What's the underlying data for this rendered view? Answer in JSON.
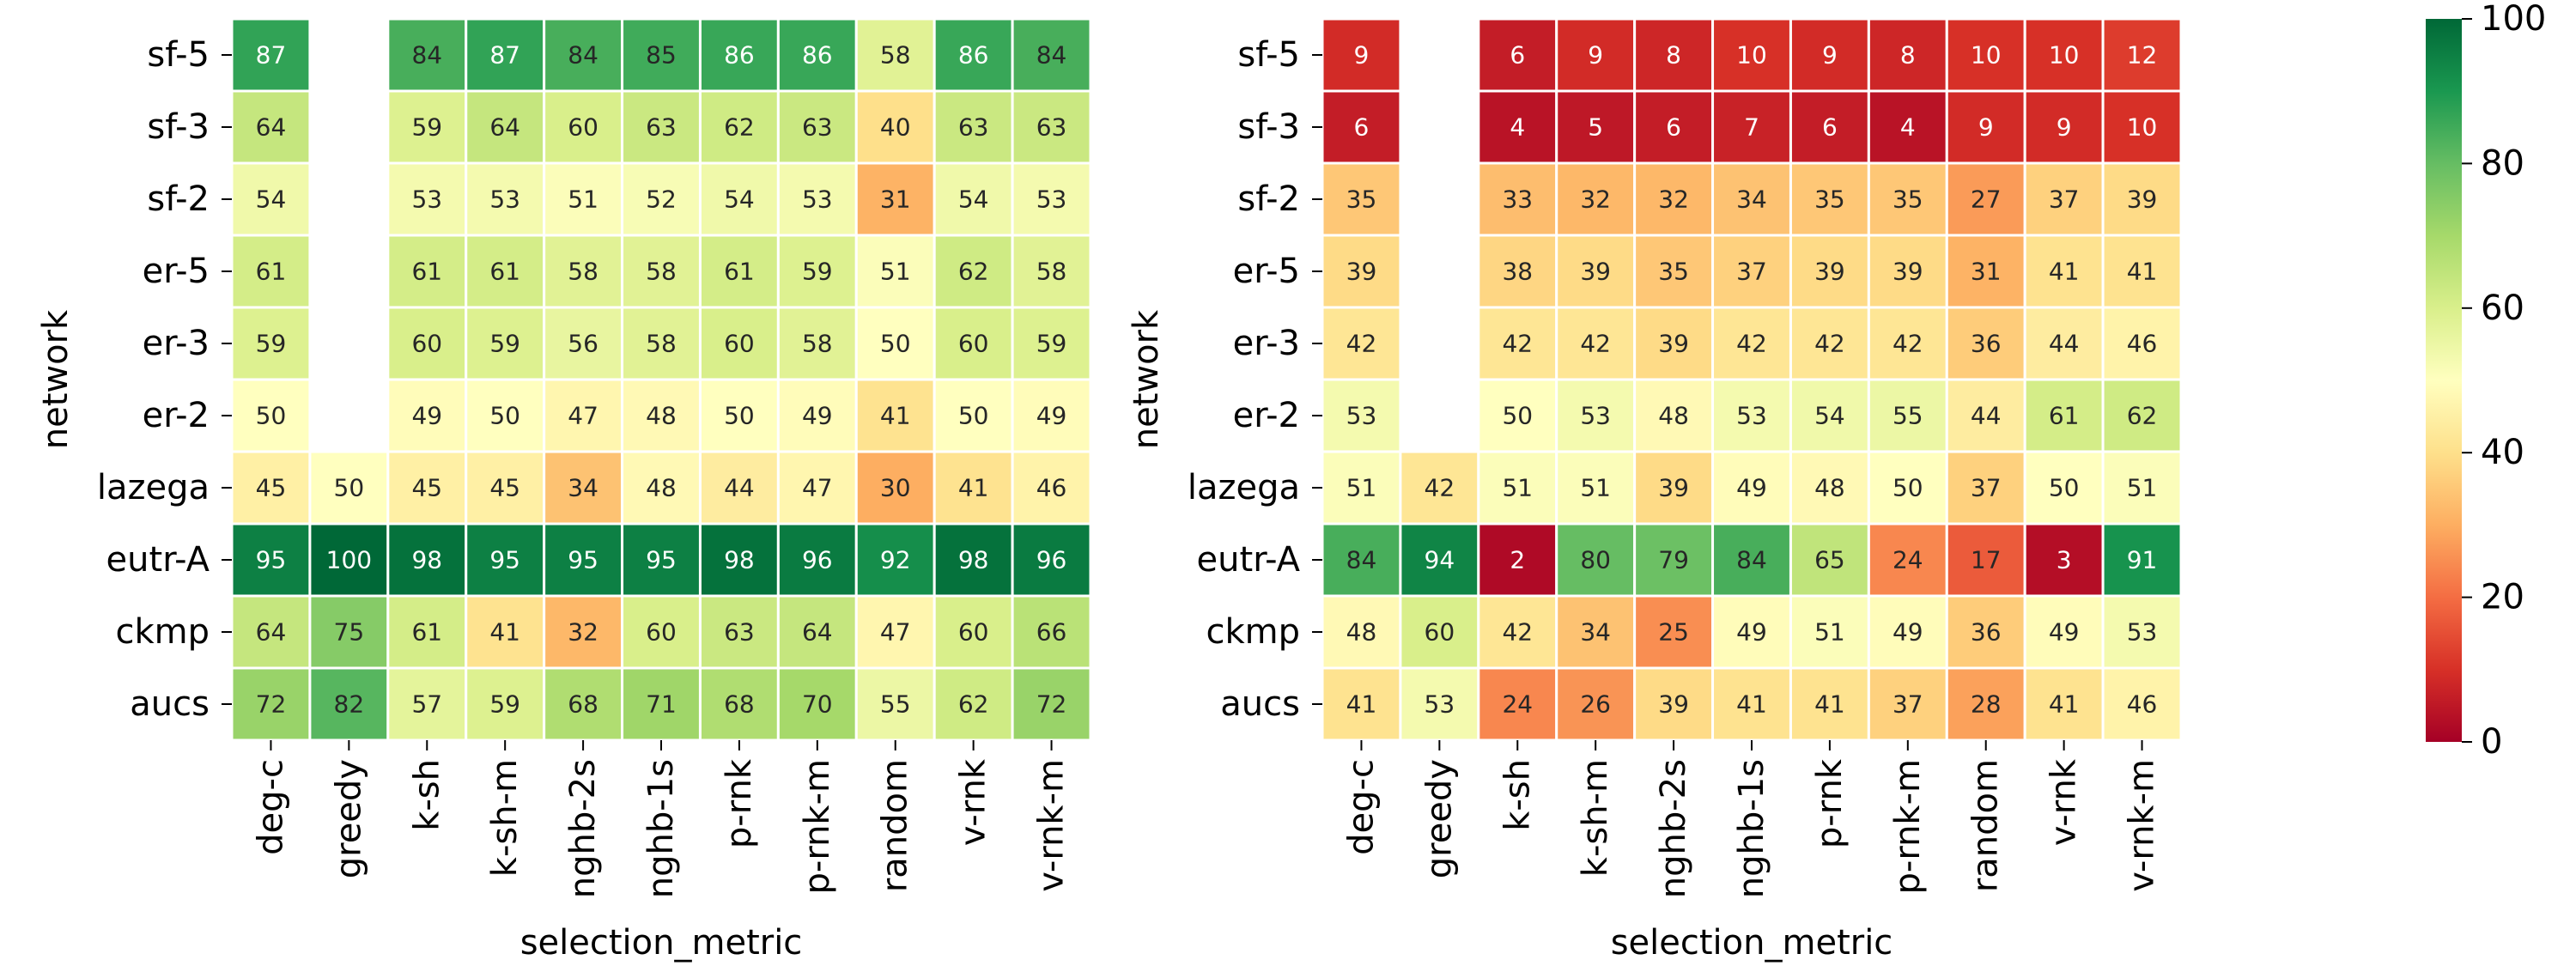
{
  "chart_data": [
    {
      "type": "heatmap",
      "xlabel": "selection_metric",
      "ylabel": "network",
      "x_categories": [
        "deg-c",
        "greedy",
        "k-sh",
        "k-sh-m",
        "nghb-2s",
        "nghb-1s",
        "p-rnk",
        "p-rnk-m",
        "random",
        "v-rnk",
        "v-rnk-m"
      ],
      "y_categories": [
        "sf-5",
        "sf-3",
        "sf-2",
        "er-5",
        "er-3",
        "er-2",
        "lazega",
        "eutr-A",
        "ckmp",
        "aucs"
      ],
      "values": [
        [
          87,
          null,
          84,
          87,
          84,
          85,
          86,
          86,
          58,
          86,
          84
        ],
        [
          64,
          null,
          59,
          64,
          60,
          63,
          62,
          63,
          40,
          63,
          63
        ],
        [
          54,
          null,
          53,
          53,
          51,
          52,
          54,
          53,
          31,
          54,
          53
        ],
        [
          61,
          null,
          61,
          61,
          58,
          58,
          61,
          59,
          51,
          62,
          58
        ],
        [
          59,
          null,
          60,
          59,
          56,
          58,
          60,
          58,
          50,
          60,
          59
        ],
        [
          50,
          null,
          49,
          50,
          47,
          48,
          50,
          49,
          41,
          50,
          49
        ],
        [
          45,
          50,
          45,
          45,
          34,
          48,
          44,
          47,
          30,
          41,
          46
        ],
        [
          95,
          100,
          98,
          95,
          95,
          95,
          98,
          96,
          92,
          98,
          96
        ],
        [
          64,
          75,
          61,
          41,
          32,
          60,
          63,
          64,
          47,
          60,
          66
        ],
        [
          72,
          82,
          57,
          59,
          68,
          71,
          68,
          70,
          55,
          62,
          72
        ]
      ]
    },
    {
      "type": "heatmap",
      "xlabel": "selection_metric",
      "ylabel": "network",
      "x_categories": [
        "deg-c",
        "greedy",
        "k-sh",
        "k-sh-m",
        "nghb-2s",
        "nghb-1s",
        "p-rnk",
        "p-rnk-m",
        "random",
        "v-rnk",
        "v-rnk-m"
      ],
      "y_categories": [
        "sf-5",
        "sf-3",
        "sf-2",
        "er-5",
        "er-3",
        "er-2",
        "lazega",
        "eutr-A",
        "ckmp",
        "aucs"
      ],
      "values": [
        [
          9,
          null,
          6,
          9,
          8,
          10,
          9,
          8,
          10,
          10,
          12
        ],
        [
          6,
          null,
          4,
          5,
          6,
          7,
          6,
          4,
          9,
          9,
          10
        ],
        [
          35,
          null,
          33,
          32,
          32,
          34,
          35,
          35,
          27,
          37,
          39
        ],
        [
          39,
          null,
          38,
          39,
          35,
          37,
          39,
          39,
          31,
          41,
          41
        ],
        [
          42,
          null,
          42,
          42,
          39,
          42,
          42,
          42,
          36,
          44,
          46
        ],
        [
          53,
          null,
          50,
          53,
          48,
          53,
          54,
          55,
          44,
          61,
          62
        ],
        [
          51,
          42,
          51,
          51,
          39,
          49,
          48,
          50,
          37,
          50,
          51
        ],
        [
          84,
          94,
          2,
          80,
          79,
          84,
          65,
          24,
          17,
          3,
          91
        ],
        [
          48,
          60,
          42,
          34,
          25,
          49,
          51,
          49,
          36,
          49,
          53
        ],
        [
          41,
          53,
          24,
          26,
          39,
          41,
          41,
          37,
          28,
          41,
          46
        ]
      ]
    }
  ],
  "colorbar": {
    "colormap": "RdYlGn",
    "range": [
      0,
      100
    ],
    "ticks": [
      "0",
      "20",
      "40",
      "60",
      "80",
      "100"
    ]
  }
}
